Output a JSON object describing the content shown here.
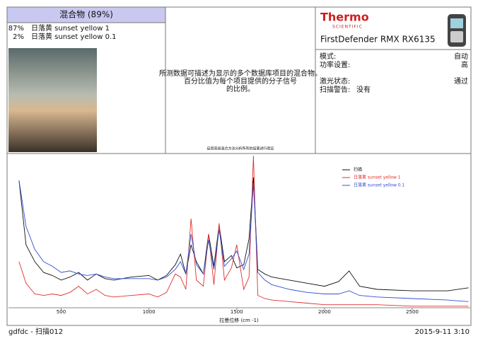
{
  "result": {
    "title": "混合物 (89%)",
    "components": [
      {
        "percent": "87%",
        "name": "日落黄 sunset yellow 1"
      },
      {
        "percent": "2%",
        "name": "日落黄 sunset yellow 0.1"
      }
    ]
  },
  "description": {
    "lines": [
      "所测数据可描述为显示的多个数据库项目的混合物。",
      "百分比值为每个项目提供的分子信号",
      "的比例。"
    ],
    "note": "启用高级混合方法分析所有的结果进行验证"
  },
  "device": {
    "brand": "Thermo",
    "brand_sub": "SCIENTIFIC",
    "model": "FirstDefender RMX RX6135",
    "fields": [
      {
        "label": "模式:",
        "value": "自动"
      },
      {
        "label": "功率设置:",
        "value": "高"
      },
      {
        "label": "激光状态:",
        "value": "通过"
      },
      {
        "label": "扫描警告:",
        "value": "没有"
      }
    ]
  },
  "chart_data": {
    "type": "line",
    "x_label": "拉曼位移 (cm -1)",
    "x": [
      260,
      300,
      350,
      400,
      450,
      500,
      550,
      600,
      650,
      700,
      750,
      800,
      900,
      1000,
      1050,
      1100,
      1150,
      1180,
      1210,
      1240,
      1270,
      1310,
      1340,
      1370,
      1400,
      1430,
      1470,
      1500,
      1540,
      1570,
      1595,
      1620,
      1660,
      1700,
      1800,
      1900,
      2000,
      2080,
      2140,
      2200,
      2300,
      2500,
      2700,
      2820
    ],
    "series": [
      {
        "name": "扫描",
        "color": "#111111",
        "values": [
          83,
          41,
          30,
          23,
          21,
          18,
          20,
          23,
          18,
          22,
          19,
          18,
          20,
          21,
          18,
          21,
          28,
          35,
          22,
          41,
          30,
          22,
          48,
          27,
          54,
          30,
          34,
          26,
          28,
          45,
          85,
          25,
          22,
          20,
          18,
          16,
          14,
          17,
          24,
          14,
          12,
          11,
          11,
          13
        ]
      },
      {
        "name": "日落黄 sunset yellow 1",
        "color": "#e03030",
        "values": [
          30,
          16,
          9,
          8,
          9,
          8,
          10,
          14,
          9,
          12,
          8,
          7,
          8,
          9,
          7,
          10,
          22,
          20,
          12,
          58,
          18,
          14,
          48,
          15,
          55,
          18,
          26,
          41,
          12,
          20,
          99,
          8,
          6,
          5,
          4,
          3,
          2,
          2,
          2,
          2,
          2,
          1,
          1,
          1
        ]
      },
      {
        "name": "日落黄 sunset yellow 0.1",
        "color": "#3050d0",
        "values": [
          83,
          53,
          38,
          30,
          27,
          23,
          24,
          22,
          21,
          22,
          20,
          19,
          19,
          19,
          18,
          20,
          25,
          30,
          22,
          48,
          28,
          22,
          44,
          25,
          51,
          27,
          32,
          37,
          25,
          35,
          81,
          23,
          18,
          15,
          12,
          10,
          9,
          9,
          11,
          8,
          7,
          6,
          5,
          4
        ]
      }
    ],
    "xlim": [
      200,
      2830
    ],
    "xticks": [
      500,
      1000,
      1500,
      2000,
      2500
    ],
    "ylim": [
      0,
      100
    ]
  },
  "footer": {
    "left": "gdfdc - 扫描012",
    "right": "2015-9-11 3:10"
  }
}
